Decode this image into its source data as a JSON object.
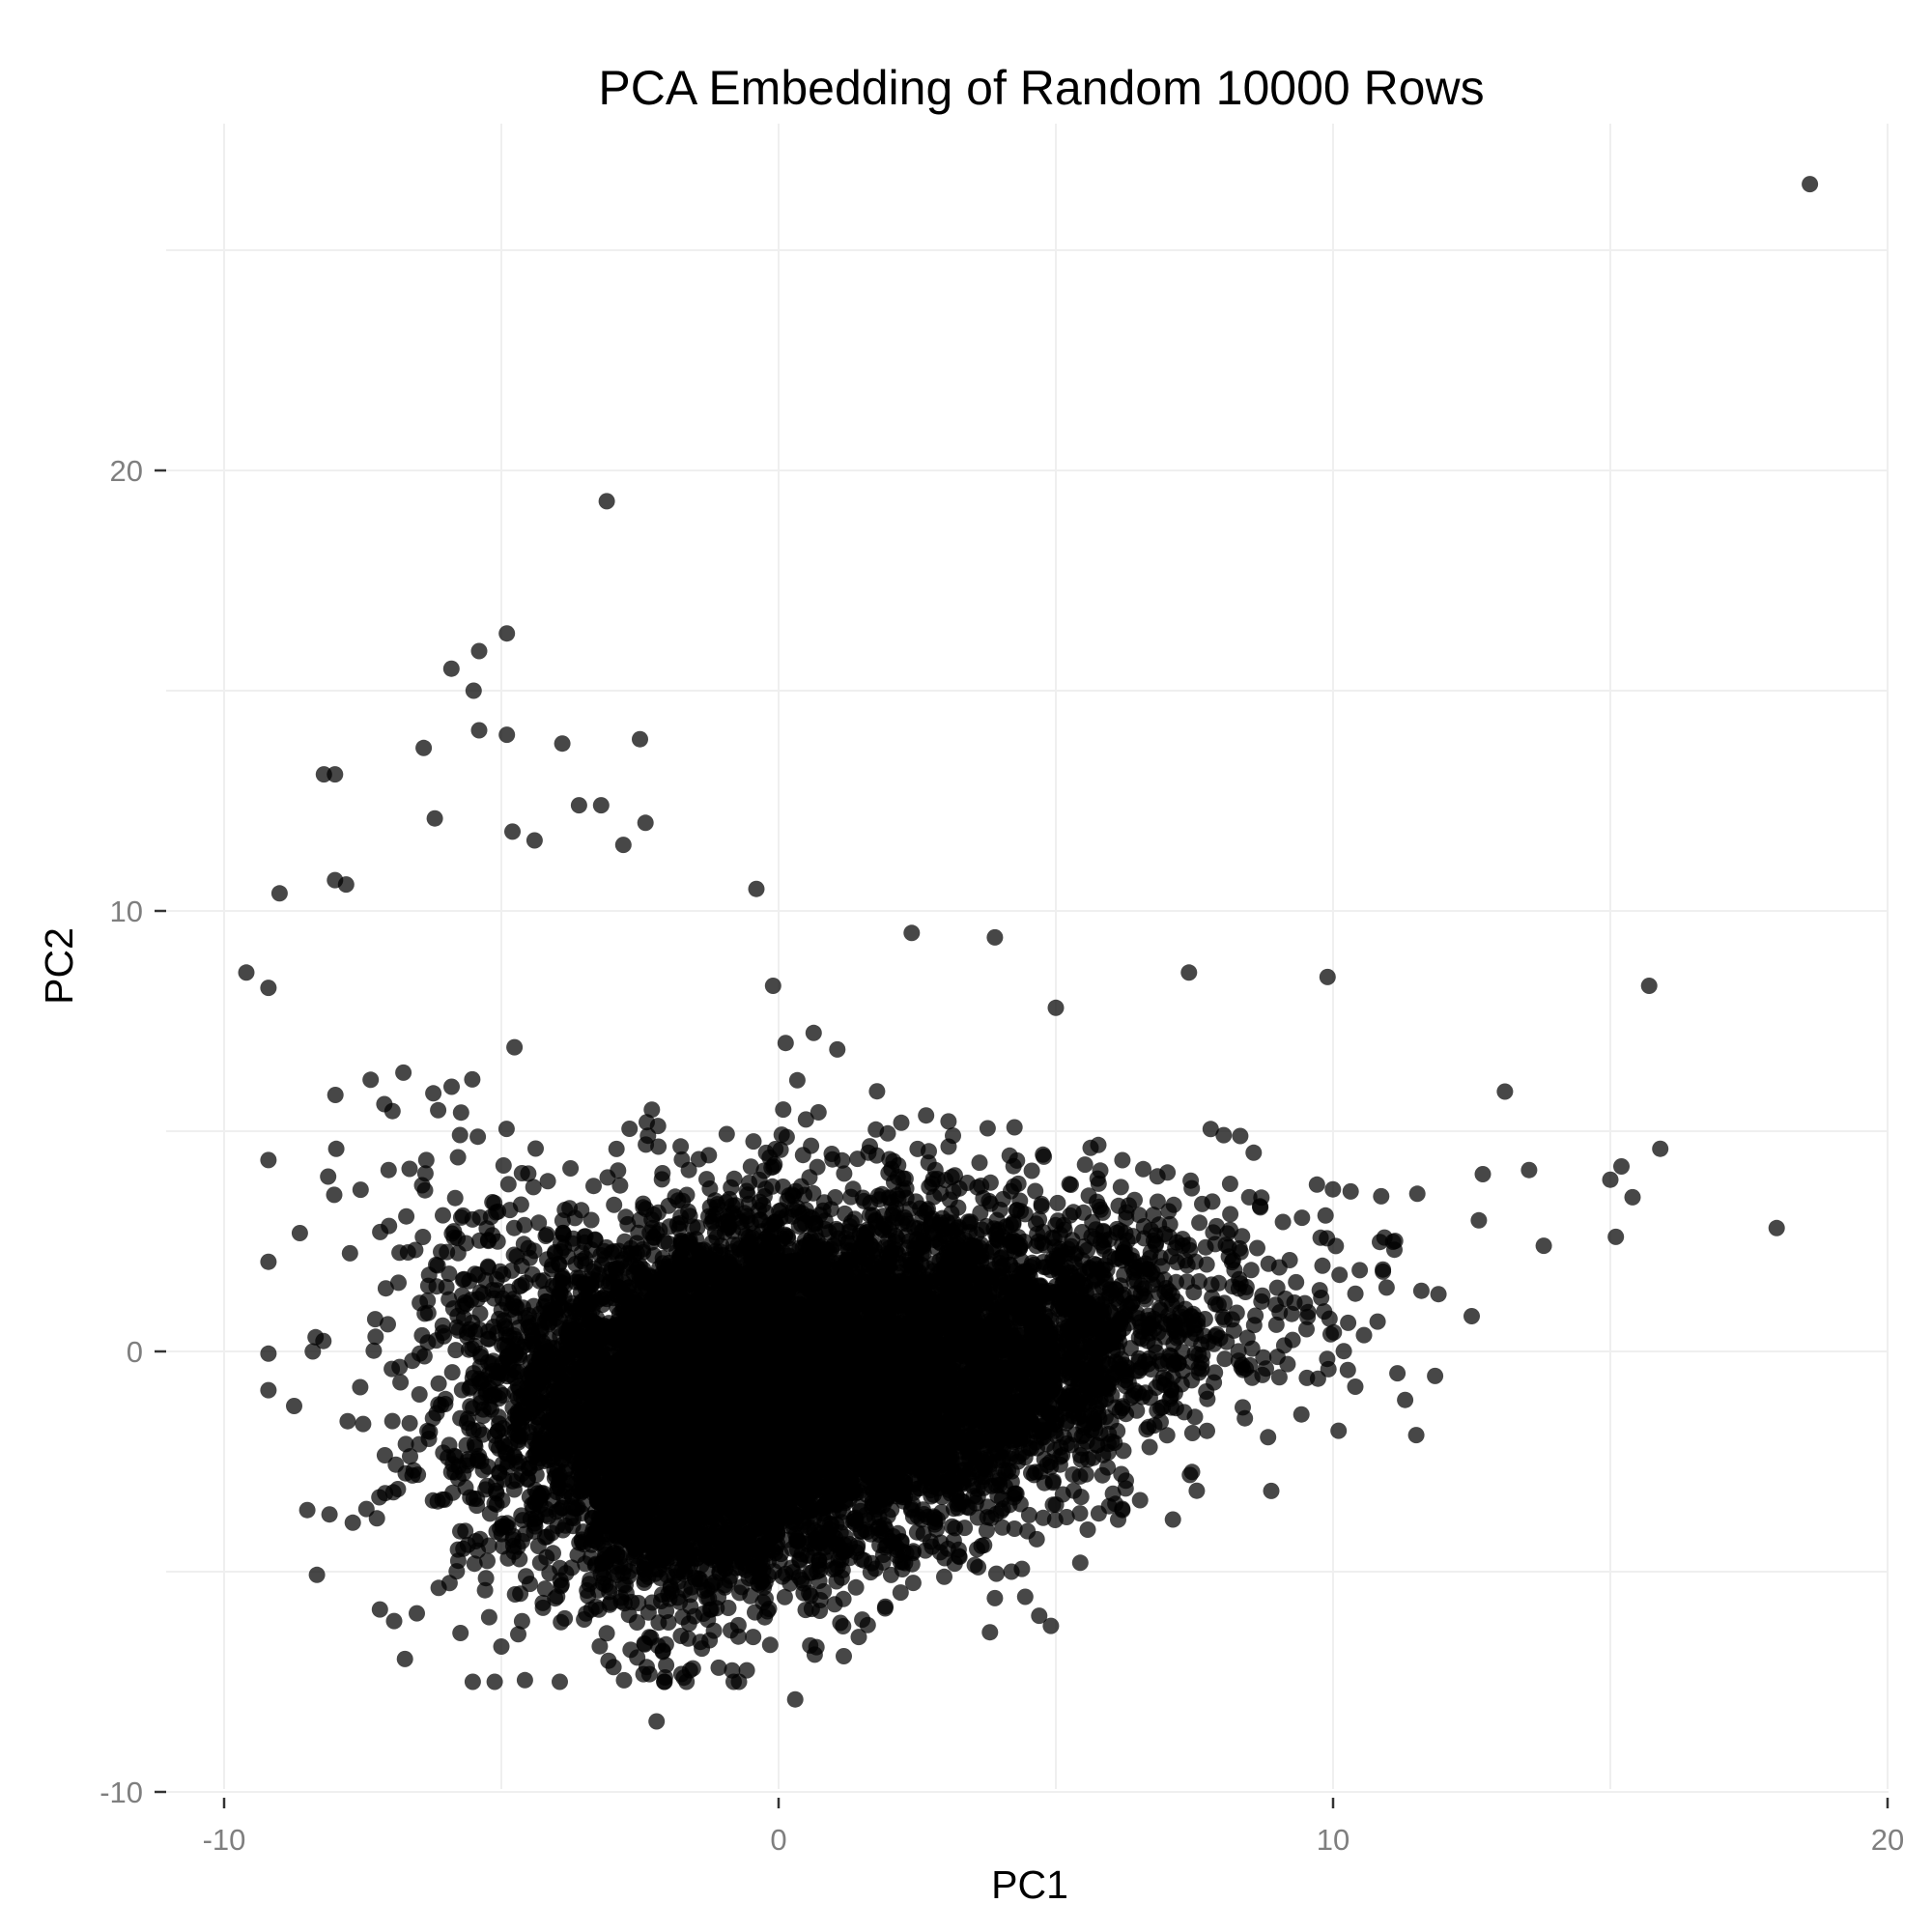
{
  "chart_data": {
    "type": "scatter",
    "title": "PCA Embedding of Random 10000 Rows",
    "xlabel": "PC1",
    "ylabel": "PC2",
    "xlim": [
      -10,
      20
    ],
    "ylim": [
      -10,
      25
    ],
    "x_ticks": [
      -10,
      0,
      10,
      20
    ],
    "y_ticks": [
      -10,
      0,
      10,
      20
    ],
    "x_tick_labels": [
      "-10",
      "0",
      "10",
      "20"
    ],
    "y_tick_labels": [
      "-10",
      "0",
      "10",
      "20"
    ],
    "grid": true,
    "point_color": "#000000",
    "point_opacity": 0.72,
    "dense_core": {
      "x_mean": 0,
      "y_mean": -1,
      "n_points": 10000
    },
    "outliers": [
      [
        18.6,
        26.5
      ],
      [
        -3.1,
        19.3
      ],
      [
        -4.9,
        16.3
      ],
      [
        -5.4,
        15.9
      ],
      [
        -5.9,
        15.5
      ],
      [
        -5.5,
        15.0
      ],
      [
        -4.9,
        14.0
      ],
      [
        -5.4,
        14.1
      ],
      [
        -3.9,
        13.8
      ],
      [
        -2.5,
        13.9
      ],
      [
        -6.4,
        13.7
      ],
      [
        -8.2,
        13.1
      ],
      [
        -8.0,
        13.1
      ],
      [
        -3.6,
        12.4
      ],
      [
        -3.2,
        12.4
      ],
      [
        -6.2,
        12.1
      ],
      [
        -2.4,
        12.0
      ],
      [
        -4.8,
        11.8
      ],
      [
        -4.4,
        11.6
      ],
      [
        -2.8,
        11.5
      ],
      [
        -9.0,
        10.4
      ],
      [
        -7.8,
        10.6
      ],
      [
        -8.0,
        10.7
      ],
      [
        -0.4,
        10.5
      ],
      [
        2.4,
        9.5
      ],
      [
        3.9,
        9.4
      ],
      [
        -9.6,
        8.6
      ],
      [
        7.4,
        8.6
      ],
      [
        9.9,
        8.5
      ],
      [
        15.7,
        8.3
      ],
      [
        -0.1,
        8.3
      ],
      [
        5.0,
        7.8
      ],
      [
        13.1,
        5.9
      ],
      [
        15.2,
        4.2
      ],
      [
        15.9,
        4.6
      ],
      [
        18.0,
        2.8
      ],
      [
        13.8,
        2.4
      ],
      [
        15.4,
        3.5
      ],
      [
        15.1,
        2.6
      ],
      [
        15.0,
        3.9
      ],
      [
        -8.4,
        0.0
      ],
      [
        -8.5,
        -3.6
      ],
      [
        -8.1,
        -3.7
      ],
      [
        -5.0,
        -6.7
      ],
      [
        -2.3,
        -6.5
      ],
      [
        -3.1,
        -6.4
      ],
      [
        -0.2,
        -5.9
      ],
      [
        -2.2,
        -8.4
      ],
      [
        0.3,
        -7.9
      ],
      [
        4.7,
        -6.0
      ],
      [
        3.9,
        -5.6
      ],
      [
        4.2,
        -5.0
      ],
      [
        3.6,
        -4.9
      ],
      [
        6.2,
        -3.6
      ],
      [
        11.5,
        -1.9
      ],
      [
        10.1,
        -1.8
      ],
      [
        11.3,
        -1.1
      ],
      [
        10.4,
        -0.8
      ],
      [
        12.5,
        0.8
      ],
      [
        11.9,
        1.3
      ]
    ]
  }
}
